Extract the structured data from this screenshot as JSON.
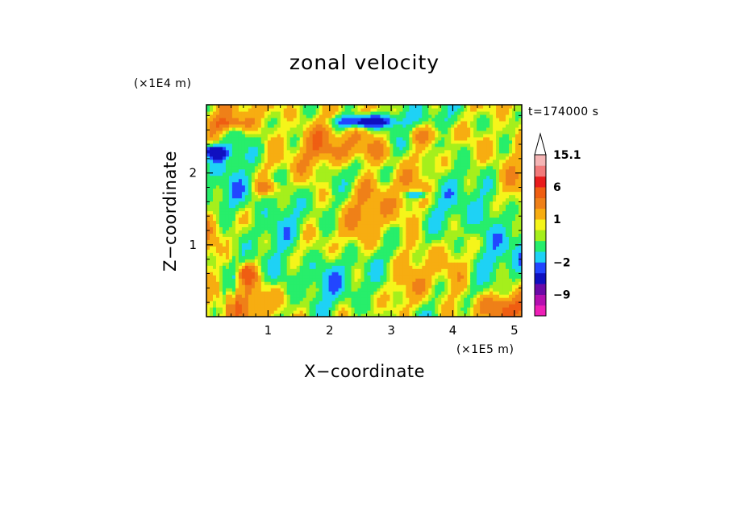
{
  "chart_data": {
    "type": "heatmap",
    "title": "zonal velocity",
    "xlabel": "X−coordinate",
    "ylabel": "Z−coordinate",
    "x_scale_label": "(×1E5 m)",
    "y_scale_label": "(×1E4 m)",
    "time_label": "t=174000 s",
    "xlim": [
      0,
      5.12
    ],
    "ylim": [
      0,
      2.95
    ],
    "x_ticks": [
      {
        "value": 1,
        "label": "1"
      },
      {
        "value": 2,
        "label": "2"
      },
      {
        "value": 3,
        "label": "3"
      },
      {
        "value": 4,
        "label": "4"
      },
      {
        "value": 5,
        "label": "5"
      }
    ],
    "y_ticks": [
      {
        "value": 1,
        "label": "1"
      },
      {
        "value": 2,
        "label": "2"
      }
    ],
    "colorbar": {
      "levels": [
        {
          "upper": -12,
          "color": "#ee1fb7"
        },
        {
          "upper": -9,
          "color": "#b40fb0"
        },
        {
          "upper": -6,
          "color": "#6b0aa8"
        },
        {
          "upper": -3,
          "color": "#1010c0"
        },
        {
          "upper": -2,
          "color": "#2246ff"
        },
        {
          "upper": -1,
          "color": "#1ed2f5"
        },
        {
          "upper": 0,
          "color": "#27ee6b"
        },
        {
          "upper": 0.5,
          "color": "#a5ef1c"
        },
        {
          "upper": 1,
          "color": "#f5f51a"
        },
        {
          "upper": 2,
          "color": "#f7ad11"
        },
        {
          "upper": 3,
          "color": "#ef8018"
        },
        {
          "upper": 6,
          "color": "#ef5e12"
        },
        {
          "upper": 9,
          "color": "#e81c1c"
        },
        {
          "upper": 12,
          "color": "#f27a7a"
        },
        {
          "upper": 15.1,
          "color": "#f5b4b4"
        }
      ],
      "tick_labels": [
        {
          "value": 15.1,
          "label": "15.1"
        },
        {
          "value": 6,
          "label": "6"
        },
        {
          "value": 1,
          "label": "1"
        },
        {
          "value": -2,
          "label": "−2"
        },
        {
          "value": -9,
          "label": "−9"
        }
      ],
      "extend": "max"
    }
  }
}
